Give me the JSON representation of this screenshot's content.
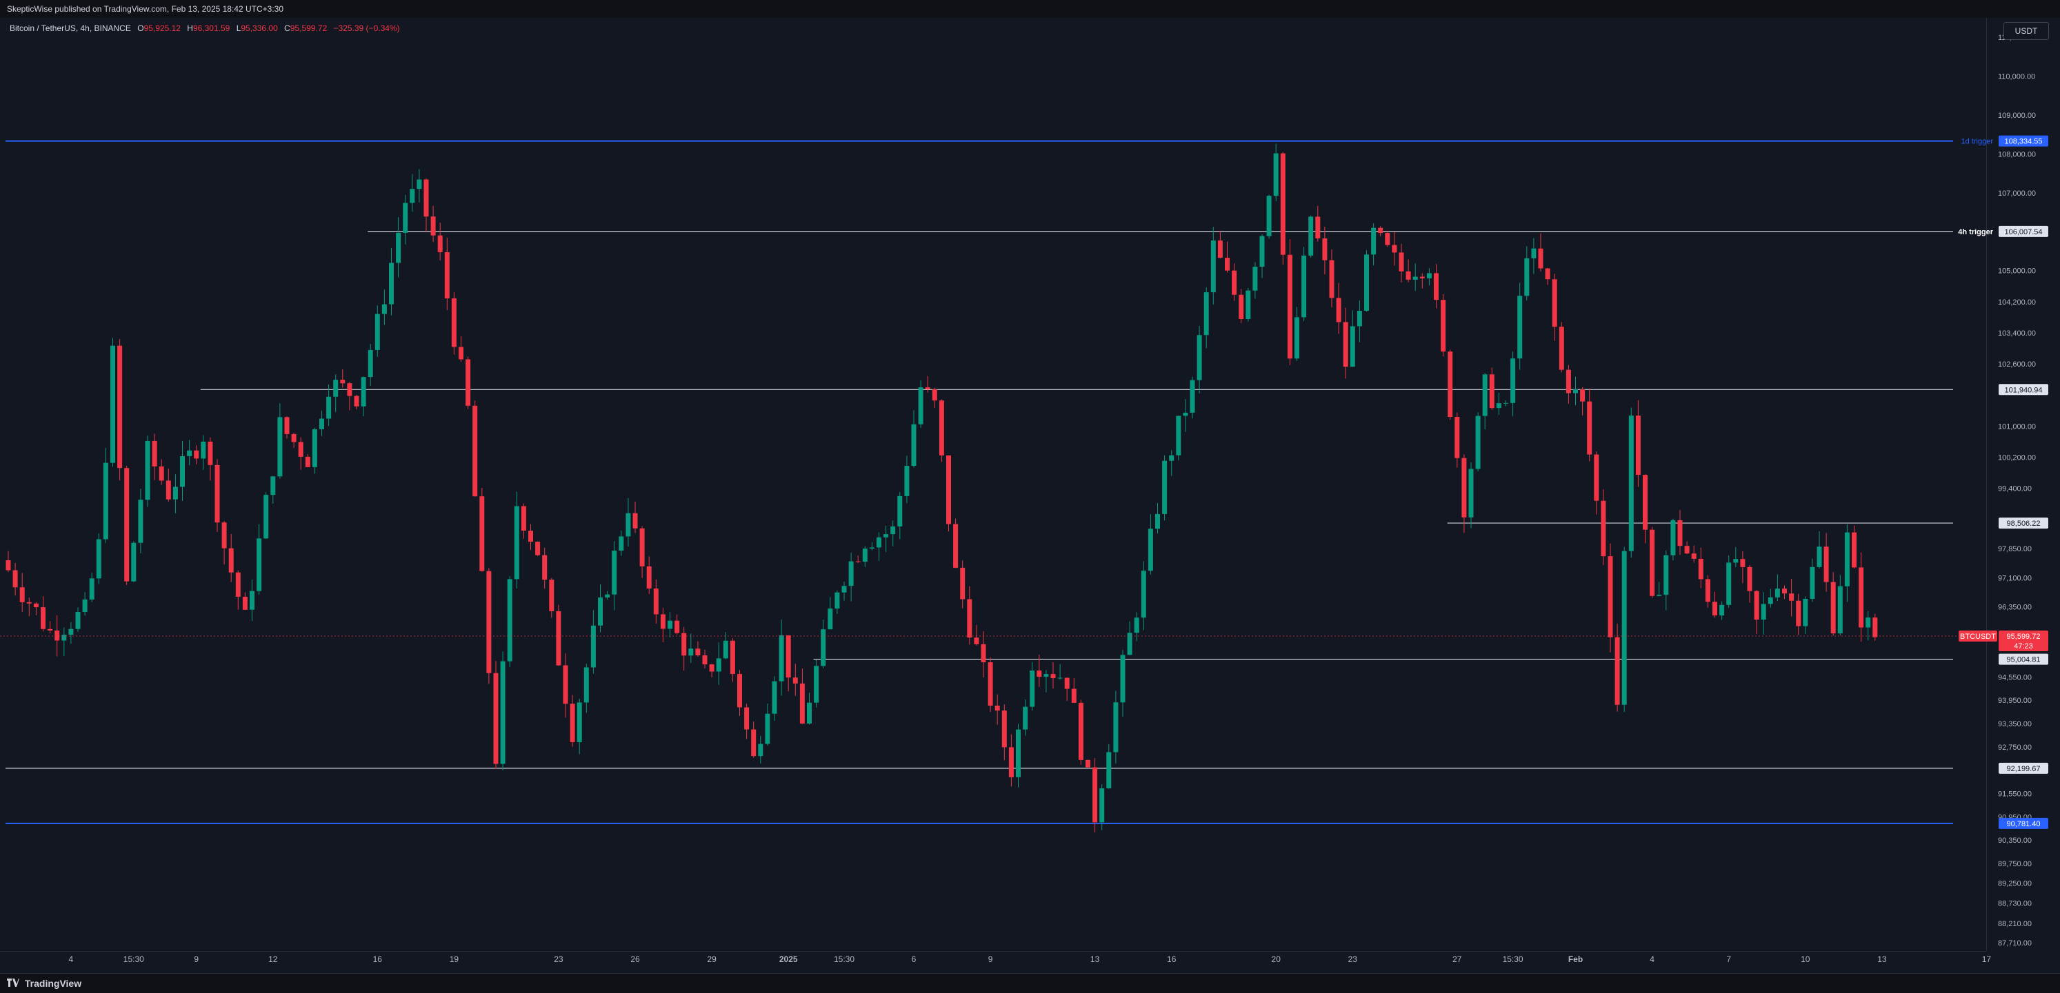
{
  "header": {
    "published": "SkepticWise published on TradingView.com, Feb 13, 2025 18:42 UTC+3:30"
  },
  "legend": {
    "symbol": "Bitcoin / TetherUS, 4h, BINANCE",
    "open_label": "O",
    "open": "95,925.12",
    "high_label": "H",
    "high": "96,301.59",
    "low_label": "L",
    "low": "95,336.00",
    "close_label": "C",
    "close": "95,599.72",
    "change": "−325.39 (−0.34%)"
  },
  "currency_button": {
    "label": "USDT"
  },
  "price_axis": {
    "ticks": [
      {
        "price": 111000,
        "label": "111,000.00"
      },
      {
        "price": 110000,
        "label": "110,000.00"
      },
      {
        "price": 109000,
        "label": "109,000.00"
      },
      {
        "price": 108000,
        "label": "108,000.00"
      },
      {
        "price": 107000,
        "label": "107,000.00"
      },
      {
        "price": 105000,
        "label": "105,000.00"
      },
      {
        "price": 104200,
        "label": "104,200.00"
      },
      {
        "price": 103400,
        "label": "103,400.00"
      },
      {
        "price": 102600,
        "label": "102,600.00"
      },
      {
        "price": 101000,
        "label": "101,000.00"
      },
      {
        "price": 100200,
        "label": "100,200.00"
      },
      {
        "price": 99400,
        "label": "99,400.00"
      },
      {
        "price": 97850,
        "label": "97,850.00"
      },
      {
        "price": 97100,
        "label": "97,100.00"
      },
      {
        "price": 96350,
        "label": "96,350.00"
      },
      {
        "price": 94550,
        "label": "94,550.00"
      },
      {
        "price": 93950,
        "label": "93,950.00"
      },
      {
        "price": 93350,
        "label": "93,350.00"
      },
      {
        "price": 92750,
        "label": "92,750.00"
      },
      {
        "price": 91550,
        "label": "91,550.00"
      },
      {
        "price": 90950,
        "label": "90,950.00"
      },
      {
        "price": 90350,
        "label": "90,350.00"
      },
      {
        "price": 89750,
        "label": "89,750.00"
      },
      {
        "price": 89250,
        "label": "89,250.00"
      },
      {
        "price": 88730,
        "label": "88,730.00"
      },
      {
        "price": 88210,
        "label": "88,210.00"
      },
      {
        "price": 87710,
        "label": "87,710.00"
      }
    ]
  },
  "levels": [
    {
      "price": 108334.55,
      "label": "108,334.55",
      "color": "#2962ff",
      "text": "1d trigger",
      "start_bar": 0
    },
    {
      "price": 106007.54,
      "label": "106,007.54",
      "color": "#d1d4dc",
      "text": "4h trigger",
      "start_bar": 52
    },
    {
      "price": 101940.94,
      "label": "101,940.94",
      "color": "#d1d4dc",
      "text": "",
      "start_bar": 28
    },
    {
      "price": 98506.22,
      "label": "98,506.22",
      "color": "#d1d4dc",
      "text": "",
      "start_bar": 207
    },
    {
      "price": 95004.81,
      "label": "95,004.81",
      "color": "#d1d4dc",
      "text": "",
      "start_bar": 116
    },
    {
      "price": 92199.67,
      "label": "92,199.67",
      "color": "#d1d4dc",
      "text": "",
      "start_bar": 0
    },
    {
      "price": 90781.4,
      "label": "90,781.40",
      "color": "#2962ff",
      "text": "",
      "start_bar": 0
    }
  ],
  "current_price": {
    "symbol": "BTCUSDT",
    "price": 95599.72,
    "label": "95,599.72",
    "countdown": "47:23",
    "color": "#f23645"
  },
  "time_axis": {
    "labels": [
      {
        "bar": 9,
        "text": "4"
      },
      {
        "bar": 18,
        "text": "15:30"
      },
      {
        "bar": 27,
        "text": "9"
      },
      {
        "bar": 38,
        "text": "12"
      },
      {
        "bar": 53,
        "text": "16"
      },
      {
        "bar": 64,
        "text": "19"
      },
      {
        "bar": 79,
        "text": "23"
      },
      {
        "bar": 90,
        "text": "26"
      },
      {
        "bar": 101,
        "text": "29"
      },
      {
        "bar": 112,
        "text": "2025"
      },
      {
        "bar": 120,
        "text": "15:30"
      },
      {
        "bar": 130,
        "text": "6"
      },
      {
        "bar": 141,
        "text": "9"
      },
      {
        "bar": 156,
        "text": "13"
      },
      {
        "bar": 167,
        "text": "16"
      },
      {
        "bar": 182,
        "text": "20"
      },
      {
        "bar": 193,
        "text": "23"
      },
      {
        "bar": 208,
        "text": "27"
      },
      {
        "bar": 216,
        "text": "15:30"
      },
      {
        "bar": 225,
        "text": "Feb"
      },
      {
        "bar": 236,
        "text": "4"
      },
      {
        "bar": 247,
        "text": "7"
      },
      {
        "bar": 258,
        "text": "10"
      },
      {
        "bar": 269,
        "text": "13"
      },
      {
        "bar": 284,
        "text": "17"
      }
    ]
  },
  "footer": {
    "brand": "TradingView"
  },
  "chart_data": {
    "type": "candlestick",
    "symbol": "BTCUSDT",
    "timeframe": "4h",
    "ylim": [
      87500,
      111500
    ],
    "colors": {
      "up": "#089981",
      "down": "#f23645"
    },
    "anchors": [
      {
        "bar": 0,
        "price": 97300
      },
      {
        "bar": 6,
        "price": 95700
      },
      {
        "bar": 11,
        "price": 96200
      },
      {
        "bar": 13,
        "price": 97900
      },
      {
        "bar": 15,
        "price": 102800
      },
      {
        "bar": 17,
        "price": 96900
      },
      {
        "bar": 20,
        "price": 100300
      },
      {
        "bar": 23,
        "price": 99300
      },
      {
        "bar": 28,
        "price": 100800
      },
      {
        "bar": 31,
        "price": 97900
      },
      {
        "bar": 34,
        "price": 96000
      },
      {
        "bar": 39,
        "price": 101000
      },
      {
        "bar": 43,
        "price": 100200
      },
      {
        "bar": 46,
        "price": 102100
      },
      {
        "bar": 50,
        "price": 101800
      },
      {
        "bar": 53,
        "price": 103600
      },
      {
        "bar": 57,
        "price": 106800
      },
      {
        "bar": 59,
        "price": 107000
      },
      {
        "bar": 62,
        "price": 105300
      },
      {
        "bar": 66,
        "price": 101400
      },
      {
        "bar": 70,
        "price": 92500
      },
      {
        "bar": 73,
        "price": 99000
      },
      {
        "bar": 76,
        "price": 97800
      },
      {
        "bar": 81,
        "price": 93200
      },
      {
        "bar": 84,
        "price": 95600
      },
      {
        "bar": 89,
        "price": 99000
      },
      {
        "bar": 92,
        "price": 96500
      },
      {
        "bar": 96,
        "price": 95600
      },
      {
        "bar": 100,
        "price": 94600
      },
      {
        "bar": 103,
        "price": 95400
      },
      {
        "bar": 107,
        "price": 92400
      },
      {
        "bar": 111,
        "price": 95500
      },
      {
        "bar": 114,
        "price": 93300
      },
      {
        "bar": 119,
        "price": 96900
      },
      {
        "bar": 123,
        "price": 98100
      },
      {
        "bar": 127,
        "price": 98300
      },
      {
        "bar": 131,
        "price": 102000
      },
      {
        "bar": 133,
        "price": 101500
      },
      {
        "bar": 136,
        "price": 97200
      },
      {
        "bar": 140,
        "price": 94600
      },
      {
        "bar": 144,
        "price": 92200
      },
      {
        "bar": 147,
        "price": 95000
      },
      {
        "bar": 152,
        "price": 94500
      },
      {
        "bar": 156,
        "price": 91000
      },
      {
        "bar": 160,
        "price": 94800
      },
      {
        "bar": 163,
        "price": 97100
      },
      {
        "bar": 166,
        "price": 99900
      },
      {
        "bar": 170,
        "price": 102000
      },
      {
        "bar": 173,
        "price": 105600
      },
      {
        "bar": 177,
        "price": 104000
      },
      {
        "bar": 180,
        "price": 106000
      },
      {
        "bar": 182,
        "price": 108300
      },
      {
        "bar": 184,
        "price": 102500
      },
      {
        "bar": 187,
        "price": 106400
      },
      {
        "bar": 190,
        "price": 104400
      },
      {
        "bar": 192,
        "price": 102600
      },
      {
        "bar": 196,
        "price": 105900
      },
      {
        "bar": 200,
        "price": 105000
      },
      {
        "bar": 204,
        "price": 105200
      },
      {
        "bar": 207,
        "price": 101500
      },
      {
        "bar": 209,
        "price": 99000
      },
      {
        "bar": 212,
        "price": 102000
      },
      {
        "bar": 215,
        "price": 101300
      },
      {
        "bar": 218,
        "price": 105600
      },
      {
        "bar": 221,
        "price": 104600
      },
      {
        "bar": 223,
        "price": 102400
      },
      {
        "bar": 226,
        "price": 101500
      },
      {
        "bar": 229,
        "price": 97800
      },
      {
        "bar": 231,
        "price": 93900
      },
      {
        "bar": 233,
        "price": 101500
      },
      {
        "bar": 236,
        "price": 96300
      },
      {
        "bar": 239,
        "price": 98400
      },
      {
        "bar": 242,
        "price": 97400
      },
      {
        "bar": 245,
        "price": 96300
      },
      {
        "bar": 248,
        "price": 97600
      },
      {
        "bar": 251,
        "price": 95900
      },
      {
        "bar": 254,
        "price": 97100
      },
      {
        "bar": 257,
        "price": 96200
      },
      {
        "bar": 260,
        "price": 97800
      },
      {
        "bar": 262,
        "price": 96000
      },
      {
        "bar": 264,
        "price": 98100
      },
      {
        "bar": 266,
        "price": 96100
      },
      {
        "bar": 268,
        "price": 95600
      }
    ]
  }
}
